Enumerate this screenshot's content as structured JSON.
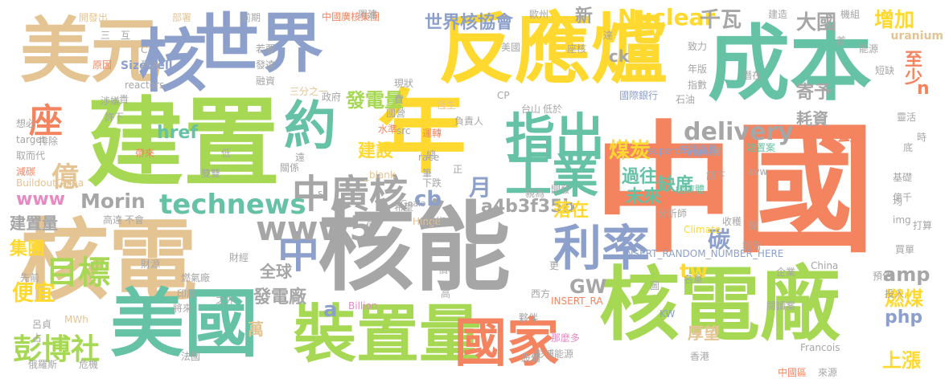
{
  "palette": {
    "orange": "#f4845f",
    "gray": "#a6a6a6",
    "green": "#a6d854",
    "yellow": "#ffd92f",
    "tan": "#e5c494",
    "blue": "#8da0cb",
    "teal": "#66c2a5",
    "pink": "#e78ac3"
  },
  "words": [
    {
      "text": "中國",
      "color": "#f4845f"
    },
    {
      "text": "核能",
      "color": "#a6a6a6"
    },
    {
      "text": "建置",
      "color": "#a6d854"
    },
    {
      "text": "核電",
      "color": "#e5c494"
    },
    {
      "text": "年",
      "color": "#ffd92f"
    },
    {
      "text": "反應爐",
      "color": "#ffd92f"
    },
    {
      "text": "成本",
      "color": "#66c2a5"
    },
    {
      "text": "核電廠",
      "color": "#a6d854"
    },
    {
      "text": "世界",
      "color": "#8da0cb"
    },
    {
      "text": "美元",
      "color": "#e5c494"
    },
    {
      "text": "核",
      "color": "#8da0cb"
    },
    {
      "text": "美國",
      "color": "#66c2a5"
    },
    {
      "text": "裝置量",
      "color": "#a6d854"
    },
    {
      "text": "國家",
      "color": "#f4845f"
    },
    {
      "text": "約",
      "color": "#66c2a5"
    },
    {
      "text": "指出",
      "color": "#66c2a5"
    },
    {
      "text": "工業",
      "color": "#66c2a5"
    },
    {
      "text": "利率",
      "color": "#8da0cb"
    },
    {
      "text": "中廣核",
      "color": "#a6a6a6"
    },
    {
      "text": "中",
      "color": "#8da0cb"
    },
    {
      "text": "座",
      "color": "#f4845f"
    },
    {
      "text": "technews",
      "color": "#66c2a5"
    },
    {
      "text": "www5",
      "color": "#a6a6a6"
    },
    {
      "text": "億",
      "color": "#e5c494"
    },
    {
      "text": "目標",
      "color": "#a6d854"
    },
    {
      "text": "彭博社",
      "color": "#a6d854"
    },
    {
      "text": "Nuclear",
      "color": "#ffd92f"
    },
    {
      "text": "世界核協會",
      "color": "#8da0cb"
    },
    {
      "text": "千瓦",
      "color": "#a6a6a6"
    },
    {
      "text": "大國",
      "color": "#a6a6a6"
    },
    {
      "text": "增加",
      "color": "#ffd92f"
    },
    {
      "text": "發電量",
      "color": "#a6d854"
    },
    {
      "text": "delivery",
      "color": "#a6a6a6"
    },
    {
      "text": "煤炭",
      "color": "#ffd92f"
    },
    {
      "text": "建設",
      "color": "#ffd92f"
    },
    {
      "text": "cb",
      "color": "#8da0cb"
    },
    {
      "text": "a4b3f35b",
      "color": "#a6a6a6"
    },
    {
      "text": "www",
      "color": "#e78ac3"
    },
    {
      "text": "Morin",
      "color": "#a6a6a6"
    },
    {
      "text": "href",
      "color": "#66c2a5"
    },
    {
      "text": "GW",
      "color": "#a6a6a6"
    },
    {
      "text": "amp",
      "color": "#a6a6a6"
    },
    {
      "text": "php",
      "color": "#8da0cb"
    },
    {
      "text": "燃煤",
      "color": "#ffd92f"
    },
    {
      "text": "上漲",
      "color": "#ffd92f"
    },
    {
      "text": "tw",
      "color": "#ffd92f"
    },
    {
      "text": "碳",
      "color": "#8da0cb"
    },
    {
      "text": "落在",
      "color": "#ffd92f"
    },
    {
      "text": "月",
      "color": "#8da0cb"
    },
    {
      "text": "a",
      "color": "#8da0cb"
    },
    {
      "text": "集團",
      "color": "#ffd92f"
    },
    {
      "text": "便宜",
      "color": "#ffd92f"
    },
    {
      "text": "全球",
      "color": "#a6a6a6"
    },
    {
      "text": "發電廠",
      "color": "#a6a6a6"
    },
    {
      "text": "萬",
      "color": "#e5c494"
    },
    {
      "text": "過往",
      "color": "#66c2a5"
    },
    {
      "text": "未來",
      "color": "#66c2a5"
    },
    {
      "text": "缺席",
      "color": "#66c2a5"
    },
    {
      "text": "計劃",
      "color": "#f4845f"
    },
    {
      "text": "耗資",
      "color": "#a6a6a6"
    },
    {
      "text": "寄予",
      "color": "#a6a6a6"
    },
    {
      "text": "至少",
      "color": "#f4845f"
    },
    {
      "text": "n",
      "color": "#f4845f"
    },
    {
      "text": "厚望",
      "color": "#e5c494"
    },
    {
      "text": "新",
      "color": "#a6a6a6"
    },
    {
      "text": "建置量",
      "color": "#a6a6a6"
    },
    {
      "text": "ck",
      "color": "#a6a6a6"
    },
    {
      "text": "Sizewell",
      "color": "#8da0cb"
    },
    {
      "text": "uranium",
      "color": "#e5c494"
    },
    {
      "text": "INSERT_RANDOM_NUMBER_HERE",
      "color": "#8da0cb"
    },
    {
      "text": "INSERT_RA",
      "color": "#f4845f"
    },
    {
      "text": "supercharge",
      "color": "#8da0cb"
    },
    {
      "text": "zoneid",
      "color": "#8da0cb"
    },
    {
      "text": "BuildoutChina",
      "color": "#e5c494"
    },
    {
      "text": "reactors",
      "color": "#a6a6a6"
    },
    {
      "text": "Climate",
      "color": "#ffd92f"
    },
    {
      "text": "Goals",
      "color": "#a6a6a6"
    },
    {
      "text": "Hinge",
      "color": "#e5c494"
    },
    {
      "text": "Billion",
      "color": "#e78ac3"
    },
    {
      "text": "China",
      "color": "#a6a6a6"
    },
    {
      "text": "Francois",
      "color": "#a6a6a6"
    },
    {
      "text": "MWh",
      "color": "#e5c494"
    },
    {
      "text": "target",
      "color": "#a6a6a6"
    },
    {
      "text": "_blank",
      "color": "#e5c494"
    },
    {
      "text": "race",
      "color": "#a6a6a6"
    },
    {
      "text": "src",
      "color": "#a6a6a6"
    },
    {
      "text": "CP",
      "color": "#a6a6a6"
    },
    {
      "text": "avw",
      "color": "#a6a6a6"
    },
    {
      "text": "img",
      "color": "#a6a6a6"
    },
    {
      "text": "KW",
      "color": "#8da0cb"
    },
    {
      "text": "中國廣核集團",
      "color": "#f4845f"
    },
    {
      "text": "核電集團",
      "color": "#8da0cb"
    },
    {
      "text": "彭博能源",
      "color": "#a6a6a6"
    },
    {
      "text": "三分之一",
      "color": "#e5c494"
    },
    {
      "text": "國際銀行",
      "color": "#8da0cb"
    },
    {
      "text": "負責人",
      "color": "#a6a6a6"
    },
    {
      "text": "那麼多",
      "color": "#e78ac3"
    },
    {
      "text": "經濟體",
      "color": "#66c2a5"
    },
    {
      "text": "分析師",
      "color": "#a6a6a6"
    },
    {
      "text": "建置案",
      "color": "#66c2a5"
    },
    {
      "text": "開發出",
      "color": "#e5c494"
    },
    {
      "text": "部署",
      "color": "#e5c494"
    },
    {
      "text": "前期",
      "color": "#a6a6a6"
    },
    {
      "text": "興建",
      "color": "#a6a6a6"
    },
    {
      "text": "歐州",
      "color": "#a6a6a6"
    },
    {
      "text": "建造",
      "color": "#a6a6a6"
    },
    {
      "text": "機組",
      "color": "#a6a6a6"
    },
    {
      "text": "能源",
      "color": "#a6a6a6"
    },
    {
      "text": "致力",
      "color": "#a6a6a6"
    },
    {
      "text": "年版",
      "color": "#a6a6a6"
    },
    {
      "text": "潛在",
      "color": "#a6a6a6"
    },
    {
      "text": "短缺",
      "color": "#a6a6a6"
    },
    {
      "text": "政府",
      "color": "#a6a6a6"
    },
    {
      "text": "發達",
      "color": "#a6a6a6"
    },
    {
      "text": "融資",
      "color": "#a6a6a6"
    },
    {
      "text": "若要",
      "color": "#a6a6a6"
    },
    {
      "text": "原因",
      "color": "#f4845f"
    },
    {
      "text": "列入",
      "color": "#a6a6a6"
    },
    {
      "text": "涉嫌",
      "color": "#a6a6a6"
    },
    {
      "text": "許下",
      "color": "#a6a6a6"
    },
    {
      "text": "想必",
      "color": "#a6a6a6"
    },
    {
      "text": "排除",
      "color": "#a6a6a6"
    },
    {
      "text": "取而代",
      "color": "#a6a6a6"
    },
    {
      "text": "減碳",
      "color": "#f4845f"
    },
    {
      "text": "帶來",
      "color": "#f4845f"
    },
    {
      "text": "雙雙",
      "color": "#a6a6a6"
    },
    {
      "text": "下跌",
      "color": "#a6a6a6"
    },
    {
      "text": "技術",
      "color": "#a6a6a6"
    },
    {
      "text": "開發",
      "color": "#a6a6a6"
    },
    {
      "text": "親為",
      "color": "#a6a6a6"
    },
    {
      "text": "希望",
      "color": "#a6a6a6"
    },
    {
      "text": "水準",
      "color": "#f4845f"
    },
    {
      "text": "運轉",
      "color": "#f4845f"
    },
    {
      "text": "恆生",
      "color": "#e5c494"
    },
    {
      "text": "現狀",
      "color": "#a6a6a6"
    },
    {
      "text": "國營",
      "color": "#a6a6a6"
    },
    {
      "text": "台山",
      "color": "#a6a6a6"
    },
    {
      "text": "低於",
      "color": "#a6a6a6"
    },
    {
      "text": "指數",
      "color": "#a6a6a6"
    },
    {
      "text": "石油",
      "color": "#a6a6a6"
    },
    {
      "text": "靈活",
      "color": "#a6a6a6"
    },
    {
      "text": "基礎",
      "color": "#a6a6a6"
    },
    {
      "text": "億千",
      "color": "#a6a6a6"
    },
    {
      "text": "打算",
      "color": "#a6a6a6"
    },
    {
      "text": "買單",
      "color": "#a6a6a6"
    },
    {
      "text": "收穫",
      "color": "#a6a6a6"
    },
    {
      "text": "報告",
      "color": "#a6a6a6"
    },
    {
      "text": "企業",
      "color": "#a6a6a6"
    },
    {
      "text": "名單",
      "color": "#a6a6a6"
    },
    {
      "text": "閱讀案",
      "color": "#a6a6a6"
    },
    {
      "text": "預估",
      "color": "#a6a6a6"
    },
    {
      "text": "投入",
      "color": "#a6a6a6"
    },
    {
      "text": "西方",
      "color": "#a6a6a6"
    },
    {
      "text": "夥伴",
      "color": "#a6a6a6"
    },
    {
      "text": "香港",
      "color": "#a6a6a6"
    },
    {
      "text": "股價",
      "color": "#a6a6a6"
    },
    {
      "text": "中國區",
      "color": "#f4845f"
    },
    {
      "text": "來源",
      "color": "#a6a6a6"
    },
    {
      "text": "危機",
      "color": "#a6a6a6"
    },
    {
      "text": "法國",
      "color": "#a6a6a6"
    },
    {
      "text": "占",
      "color": "#a6a6a6"
    },
    {
      "text": "俄羅斯",
      "color": "#a6a6a6"
    },
    {
      "text": "呂貞",
      "color": "#a6a6a6"
    },
    {
      "text": "先前",
      "color": "#a6a6a6"
    },
    {
      "text": "財源",
      "color": "#a6a6a6"
    },
    {
      "text": "財經",
      "color": "#a6a6a6"
    },
    {
      "text": "燃氣廠",
      "color": "#a6a6a6"
    },
    {
      "text": "之外",
      "color": "#a6a6a6"
    },
    {
      "text": "將來",
      "color": "#a6a6a6"
    },
    {
      "text": "印度",
      "color": "#a6a6a6"
    },
    {
      "text": "高達",
      "color": "#a6a6a6"
    },
    {
      "text": "不會",
      "color": "#a6a6a6"
    },
    {
      "text": "價格",
      "color": "#a6a6a6"
    },
    {
      "text": "高",
      "color": "#a6a6a6"
    },
    {
      "text": "值",
      "color": "#a6a6a6"
    },
    {
      "text": "關係",
      "color": "#a6a6a6"
    },
    {
      "text": "遠",
      "color": "#a6a6a6"
    },
    {
      "text": "低",
      "color": "#a6a6a6"
    },
    {
      "text": "更",
      "color": "#a6a6a6"
    },
    {
      "text": "費",
      "color": "#a6a6a6"
    },
    {
      "text": "總",
      "color": "#a6a6a6"
    },
    {
      "text": "正",
      "color": "#a6a6a6"
    },
    {
      "text": "筆",
      "color": "#a6a6a6"
    },
    {
      "text": "黑",
      "color": "#a6a6a6"
    },
    {
      "text": "調下",
      "color": "#a6a6a6"
    },
    {
      "text": "時",
      "color": "#a6a6a6"
    },
    {
      "text": "底",
      "color": "#a6a6a6"
    },
    {
      "text": "說",
      "color": "#a6a6a6"
    },
    {
      "text": "均",
      "color": "#a6a6a6"
    },
    {
      "text": "圖",
      "color": "#a6a6a6"
    },
    {
      "text": "三",
      "color": "#a6a6a6"
    },
    {
      "text": "互",
      "color": "#a6a6a6"
    },
    {
      "text": "首",
      "color": "#a6a6a6"
    },
    {
      "text": "C",
      "color": "#a6a6a6"
    },
    {
      "text": "貴",
      "color": "#a6a6a6"
    },
    {
      "text": "s",
      "color": "#a6a6a6"
    },
    {
      "text": "美國",
      "color": "#a6a6a6"
    },
    {
      "text": "座核",
      "color": "#a6a6a6"
    },
    {
      "text": "達",
      "color": "#a6a6a6"
    }
  ]
}
